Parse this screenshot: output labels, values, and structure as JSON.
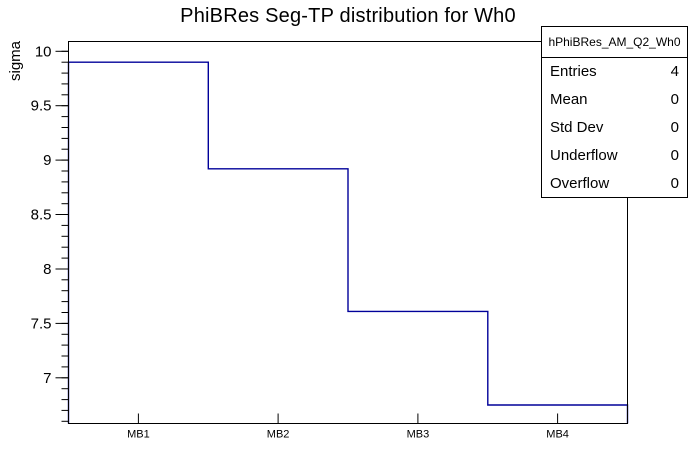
{
  "chart_data": {
    "type": "step-histogram",
    "title": "PhiBRes Seg-TP distribution for Wh0",
    "categories": [
      "MB1",
      "MB2",
      "MB3",
      "MB4"
    ],
    "values": [
      9.9,
      8.92,
      7.61,
      6.75
    ],
    "xlabel": "",
    "ylabel": "sigma",
    "ylim": [
      6.58,
      10.09
    ],
    "yticks_major": [
      7,
      7.5,
      8,
      8.5,
      9,
      9.5,
      10
    ],
    "ytick_minor_step": 0.1,
    "grid": false,
    "legend": false
  },
  "stats_box": {
    "header": "hPhiBRes_AM_Q2_Wh0",
    "rows": [
      {
        "label": "Entries",
        "value": "4"
      },
      {
        "label": "Mean",
        "value": "0"
      },
      {
        "label": "Std Dev",
        "value": "0"
      },
      {
        "label": "Underflow",
        "value": "0"
      },
      {
        "label": "Overflow",
        "value": "0"
      }
    ]
  },
  "colors": {
    "line": "#000099",
    "frame": "#000000",
    "background": "#ffffff"
  }
}
